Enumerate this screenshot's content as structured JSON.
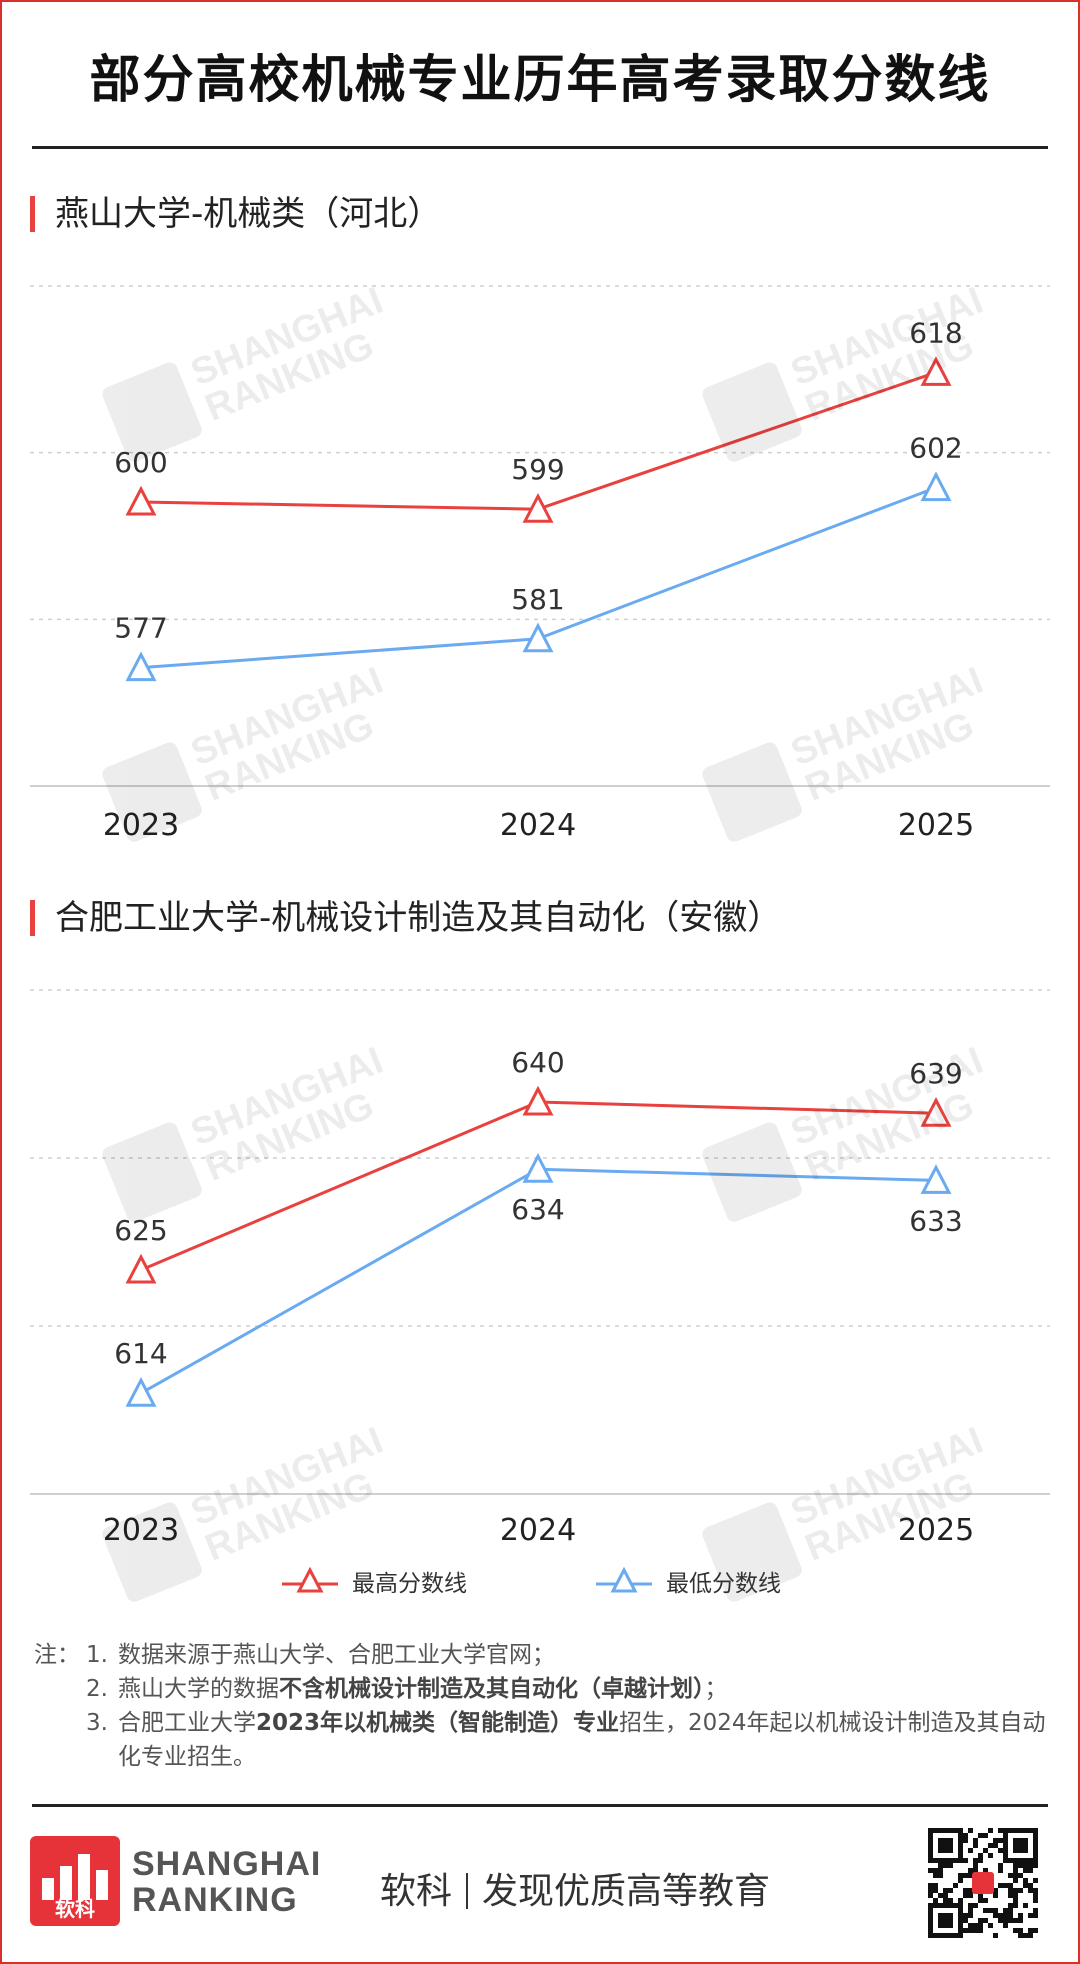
{
  "title": "部分高校机械专业历年高考录取分数线",
  "colors": {
    "max": "#e8413e",
    "min": "#6aaaf0",
    "accent": "#d9302c"
  },
  "chart_data": [
    {
      "type": "line",
      "title": "燕山大学-机械类（河北）",
      "categories": [
        "2023",
        "2024",
        "2025"
      ],
      "series": [
        {
          "name": "最高分数线",
          "values": [
            600,
            599,
            618
          ]
        },
        {
          "name": "最低分数线",
          "values": [
            577,
            581,
            602
          ]
        }
      ],
      "ylim": [
        560,
        630
      ],
      "grid": true,
      "legend": "bottom"
    },
    {
      "type": "line",
      "title": "合肥工业大学-机械设计制造及其自动化（安徽）",
      "categories": [
        "2023",
        "2024",
        "2025"
      ],
      "series": [
        {
          "name": "最高分数线",
          "values": [
            625,
            640,
            639
          ]
        },
        {
          "name": "最低分数线",
          "values": [
            614,
            634,
            633
          ]
        }
      ],
      "ylim": [
        605,
        650
      ],
      "grid": true,
      "legend": "bottom"
    }
  ],
  "legend": {
    "max_label": "最高分数线",
    "min_label": "最低分数线"
  },
  "notes": {
    "prefix": "注：",
    "n1": "1.",
    "t1": "数据来源于燕山大学、合肥工业大学官网；",
    "n2": "2.",
    "t2a": "燕山大学的数据",
    "t2b": "不含机械设计制造及其自动化（卓越计划）",
    "t2c": "；",
    "n3": "3.",
    "t3a": "合肥工业大学",
    "t3b": "2023年以机械类（智能制造）专业",
    "t3c": "招生，2024年起以机械设计制造及其自动化专业招生。"
  },
  "watermark": {
    "line1": "SHANGHAI",
    "line2": "RANKING"
  },
  "footer": {
    "logo_text": "软科",
    "brand_line1": "SHANGHAI",
    "brand_line2": "RANKING",
    "slogan_a": "软科",
    "slogan_b": "发现优质高等教育"
  }
}
